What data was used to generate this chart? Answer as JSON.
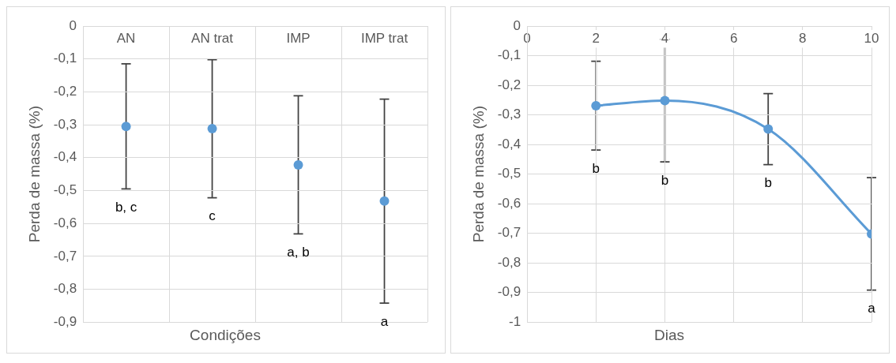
{
  "chart_data": [
    {
      "type": "scatter",
      "xlabel": "Condições",
      "ylabel": "Perda de massa (%)",
      "categories": [
        "AN",
        "AN trat",
        "IMP",
        "IMP trat"
      ],
      "values": [
        -0.305,
        -0.312,
        -0.422,
        -0.532
      ],
      "errors": [
        0.19,
        0.21,
        0.21,
        0.31
      ],
      "color": "#5b9bd5",
      "marker": "circle",
      "grid": true,
      "legend": false,
      "ylim": [
        -0.9,
        0
      ],
      "yticks": [
        {
          "value": -0.9,
          "label": "-0,9"
        },
        {
          "value": -0.8,
          "label": "-0,8"
        },
        {
          "value": -0.7,
          "label": "-0,7"
        },
        {
          "value": -0.6,
          "label": "-0,6"
        },
        {
          "value": -0.5,
          "label": "-0,5"
        },
        {
          "value": -0.4,
          "label": "-0,4"
        },
        {
          "value": -0.3,
          "label": "-0,3"
        },
        {
          "value": -0.2,
          "label": "-0,2"
        },
        {
          "value": -0.1,
          "label": "-0,1"
        },
        {
          "value": 0,
          "label": "0"
        }
      ],
      "annotations": [
        "b, c",
        "c",
        "a, b",
        "a"
      ]
    },
    {
      "type": "line",
      "xlabel": "Dias",
      "ylabel": "Perda de massa (%)",
      "x": [
        2,
        4,
        7,
        10
      ],
      "values": [
        -0.269,
        -0.252,
        -0.348,
        -0.702
      ],
      "errors": [
        0.15,
        0.207,
        0.12,
        0.19
      ],
      "color": "#5b9bd5",
      "marker": "circle",
      "line_style": "solid",
      "grid": true,
      "legend": false,
      "xlim": [
        0,
        10
      ],
      "xticks": [
        {
          "value": 0,
          "label": "0"
        },
        2,
        4,
        6,
        8,
        10
      ],
      "ylim": [
        -1,
        0
      ],
      "yticks": [
        -1,
        {
          "value": -0.9,
          "label": "-0,9"
        },
        {
          "value": -0.8,
          "label": "-0,8"
        },
        {
          "value": -0.7,
          "label": "-0,7"
        },
        {
          "value": -0.6,
          "label": "-0,6"
        },
        {
          "value": -0.5,
          "label": "-0,5"
        },
        {
          "value": -0.4,
          "label": "-0,4"
        },
        {
          "value": -0.3,
          "label": "-0,3"
        },
        {
          "value": -0.2,
          "label": "-0,2"
        },
        {
          "value": -0.1,
          "label": "-0,1"
        },
        {
          "value": 0,
          "label": "0"
        }
      ],
      "annotations": [
        "b",
        "b",
        "b",
        "a"
      ]
    }
  ]
}
